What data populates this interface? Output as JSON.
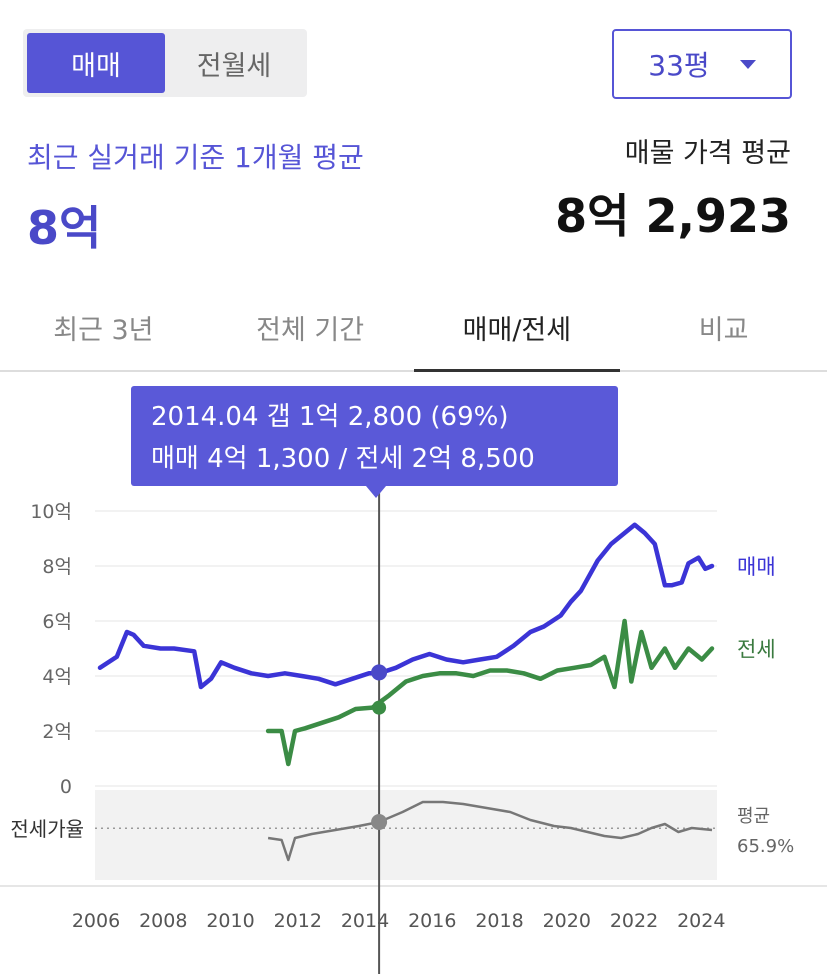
{
  "trade_toggle": {
    "options": [
      "매매",
      "전월세"
    ],
    "selected": 0
  },
  "size_select": {
    "value": "33평"
  },
  "summary": {
    "recent_label": "최근 실거래 기준 1개월 평균",
    "recent_value": "8억",
    "listing_label": "매물 가격 평균",
    "listing_value": "8억 2,923"
  },
  "tabs": [
    {
      "label": "최근 3년"
    },
    {
      "label": "전체 기간"
    },
    {
      "label": "매매/전세"
    },
    {
      "label": "비교"
    }
  ],
  "active_tab": 2,
  "tooltip": {
    "line1": "2014.04  갭 1억 2,800 (69%)",
    "line2": "매매 4억 1,300 / 전세 2억 8,500"
  },
  "colors": {
    "accent": "#5655d6",
    "sale": "#3b34d6",
    "jeonse": "#3b8c45",
    "ratio": "#777777",
    "crosshair": "#555555"
  },
  "chart_data": {
    "type": "line",
    "y_unit": "억원",
    "ylim": [
      0,
      10
    ],
    "y_ticks": [
      {
        "v": 10,
        "label": "10억"
      },
      {
        "v": 8,
        "label": "8억"
      },
      {
        "v": 6,
        "label": "6억"
      },
      {
        "v": 4,
        "label": "4억"
      },
      {
        "v": 2,
        "label": "2억"
      },
      {
        "v": 0,
        "label": "0"
      }
    ],
    "x_ticks": [
      "2006",
      "2008",
      "2010",
      "2012",
      "2014",
      "2016",
      "2018",
      "2020",
      "2022",
      "2024"
    ],
    "xlim": [
      2006,
      2024.2
    ],
    "grid": true,
    "crosshair": {
      "x": 2014.3
    },
    "series": [
      {
        "name": "매매",
        "x": [
          2006.0,
          2006.5,
          2006.8,
          2007.0,
          2007.3,
          2007.8,
          2008.2,
          2008.8,
          2009.0,
          2009.3,
          2009.6,
          2010.0,
          2010.5,
          2011.0,
          2011.5,
          2012.0,
          2012.5,
          2013.0,
          2013.5,
          2014.0,
          2014.3,
          2014.8,
          2015.3,
          2015.8,
          2016.3,
          2016.8,
          2017.3,
          2017.8,
          2018.3,
          2018.8,
          2019.2,
          2019.7,
          2020.0,
          2020.3,
          2020.8,
          2021.2,
          2021.6,
          2021.9,
          2022.2,
          2022.5,
          2022.8,
          2023.0,
          2023.3,
          2023.5,
          2023.8,
          2024.0,
          2024.2
        ],
        "values": [
          4.3,
          4.7,
          5.6,
          5.5,
          5.1,
          5.0,
          5.0,
          4.9,
          3.6,
          3.9,
          4.5,
          4.3,
          4.1,
          4.0,
          4.1,
          4.0,
          3.9,
          3.7,
          3.9,
          4.1,
          4.1,
          4.3,
          4.6,
          4.8,
          4.6,
          4.5,
          4.6,
          4.7,
          5.1,
          5.6,
          5.8,
          6.2,
          6.7,
          7.1,
          8.2,
          8.8,
          9.2,
          9.5,
          9.2,
          8.8,
          7.3,
          7.3,
          7.4,
          8.1,
          8.3,
          7.9,
          8.0
        ]
      },
      {
        "name": "전세",
        "x": [
          2011.0,
          2011.4,
          2011.6,
          2011.8,
          2012.1,
          2012.6,
          2013.1,
          2013.6,
          2014.1,
          2014.6,
          2015.1,
          2015.6,
          2016.1,
          2016.6,
          2017.1,
          2017.6,
          2018.1,
          2018.6,
          2019.1,
          2019.6,
          2020.1,
          2020.6,
          2021.0,
          2021.3,
          2021.6,
          2021.8,
          2022.1,
          2022.4,
          2022.8,
          2023.1,
          2023.5,
          2023.9,
          2024.2
        ],
        "values": [
          2.0,
          2.0,
          0.8,
          2.0,
          2.1,
          2.3,
          2.5,
          2.8,
          2.85,
          3.3,
          3.8,
          4.0,
          4.1,
          4.1,
          4.0,
          4.2,
          4.2,
          4.1,
          3.9,
          4.2,
          4.3,
          4.4,
          4.7,
          3.6,
          6.0,
          3.8,
          5.6,
          4.3,
          5.0,
          4.3,
          5.0,
          4.6,
          5.0
        ]
      }
    ],
    "sale_label": "매매",
    "jeonse_label": "전세",
    "ratio_panel": {
      "label": "전세가율",
      "avg_label": "평균",
      "avg_value": "65.9%",
      "average": 65.9,
      "ylim": [
        40,
        85
      ],
      "x": [
        2011.0,
        2011.4,
        2011.6,
        2011.8,
        2012.3,
        2013.0,
        2013.7,
        2014.3,
        2015.0,
        2015.6,
        2016.2,
        2016.8,
        2017.5,
        2018.2,
        2018.8,
        2019.5,
        2020.0,
        2020.5,
        2021.0,
        2021.5,
        2022.0,
        2022.4,
        2022.8,
        2023.2,
        2023.6,
        2024.2
      ],
      "values": [
        61,
        60,
        50,
        61,
        63,
        65,
        67,
        69,
        74,
        79,
        79,
        78,
        76,
        74,
        70,
        67,
        66,
        64,
        62,
        61,
        63,
        66,
        68,
        64,
        66,
        65
      ]
    }
  }
}
